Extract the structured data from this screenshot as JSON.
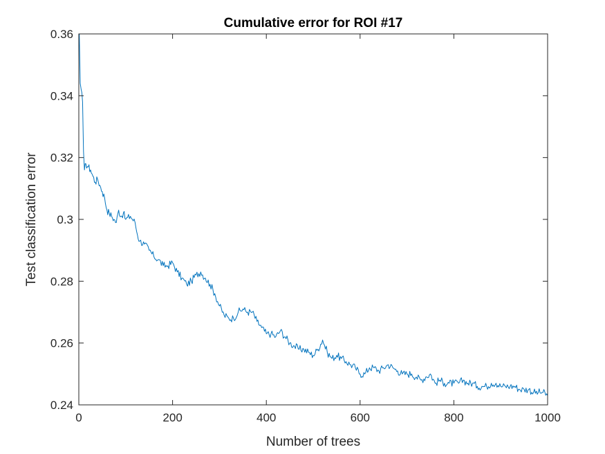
{
  "chart_data": {
    "type": "line",
    "title": "Cumulative error for ROI #17",
    "xlabel": "Number of trees",
    "ylabel": "Test classification error",
    "xlim": [
      0,
      1000
    ],
    "ylim": [
      0.24,
      0.36
    ],
    "xticks": [
      0,
      200,
      400,
      600,
      800,
      1000
    ],
    "xtick_labels": [
      "0",
      "200",
      "400",
      "600",
      "800",
      "1000"
    ],
    "yticks": [
      0.24,
      0.26,
      0.28,
      0.3,
      0.32,
      0.34,
      0.36
    ],
    "ytick_labels": [
      "0.24",
      "0.26",
      "0.28",
      "0.3",
      "0.32",
      "0.34",
      "0.36"
    ],
    "grid": false,
    "box": true,
    "line_color": "#0072BD",
    "series": [
      {
        "x": [
          1,
          3,
          5,
          8,
          10,
          12,
          15,
          20,
          25,
          30,
          35,
          40,
          45,
          50,
          55,
          60,
          65,
          70,
          75,
          80,
          85,
          90,
          95,
          100,
          110,
          120,
          125,
          130,
          140,
          150,
          160,
          170,
          180,
          190,
          200,
          210,
          220,
          230,
          240,
          250,
          260,
          270,
          280,
          290,
          300,
          310,
          320,
          330,
          340,
          350,
          360,
          370,
          380,
          390,
          400,
          410,
          420,
          430,
          440,
          450,
          460,
          470,
          480,
          490,
          500,
          510,
          520,
          530,
          540,
          550,
          560,
          570,
          580,
          590,
          600,
          610,
          620,
          630,
          640,
          650,
          660,
          670,
          680,
          690,
          700,
          710,
          720,
          730,
          740,
          750,
          760,
          770,
          780,
          790,
          800,
          810,
          820,
          830,
          840,
          850,
          860,
          870,
          880,
          890,
          900,
          910,
          920,
          930,
          940,
          950,
          960,
          970,
          980,
          990,
          1000
        ],
        "values": [
          0.36,
          0.344,
          0.342,
          0.338,
          0.322,
          0.316,
          0.318,
          0.317,
          0.316,
          0.314,
          0.312,
          0.313,
          0.311,
          0.309,
          0.307,
          0.303,
          0.302,
          0.301,
          0.3,
          0.299,
          0.303,
          0.301,
          0.302,
          0.3,
          0.301,
          0.299,
          0.295,
          0.293,
          0.292,
          0.29,
          0.288,
          0.287,
          0.285,
          0.285,
          0.286,
          0.283,
          0.281,
          0.279,
          0.28,
          0.282,
          0.283,
          0.281,
          0.279,
          0.276,
          0.272,
          0.269,
          0.268,
          0.268,
          0.27,
          0.271,
          0.27,
          0.27,
          0.267,
          0.265,
          0.263,
          0.263,
          0.262,
          0.264,
          0.262,
          0.26,
          0.259,
          0.258,
          0.258,
          0.257,
          0.256,
          0.258,
          0.261,
          0.257,
          0.255,
          0.256,
          0.255,
          0.254,
          0.253,
          0.252,
          0.25,
          0.25,
          0.252,
          0.252,
          0.251,
          0.252,
          0.253,
          0.252,
          0.251,
          0.25,
          0.25,
          0.25,
          0.249,
          0.248,
          0.249,
          0.25,
          0.247,
          0.248,
          0.247,
          0.247,
          0.247,
          0.247,
          0.248,
          0.247,
          0.247,
          0.246,
          0.246,
          0.246,
          0.247,
          0.247,
          0.246,
          0.246,
          0.246,
          0.246,
          0.245,
          0.245,
          0.245,
          0.244,
          0.244,
          0.244,
          0.243
        ]
      }
    ]
  }
}
